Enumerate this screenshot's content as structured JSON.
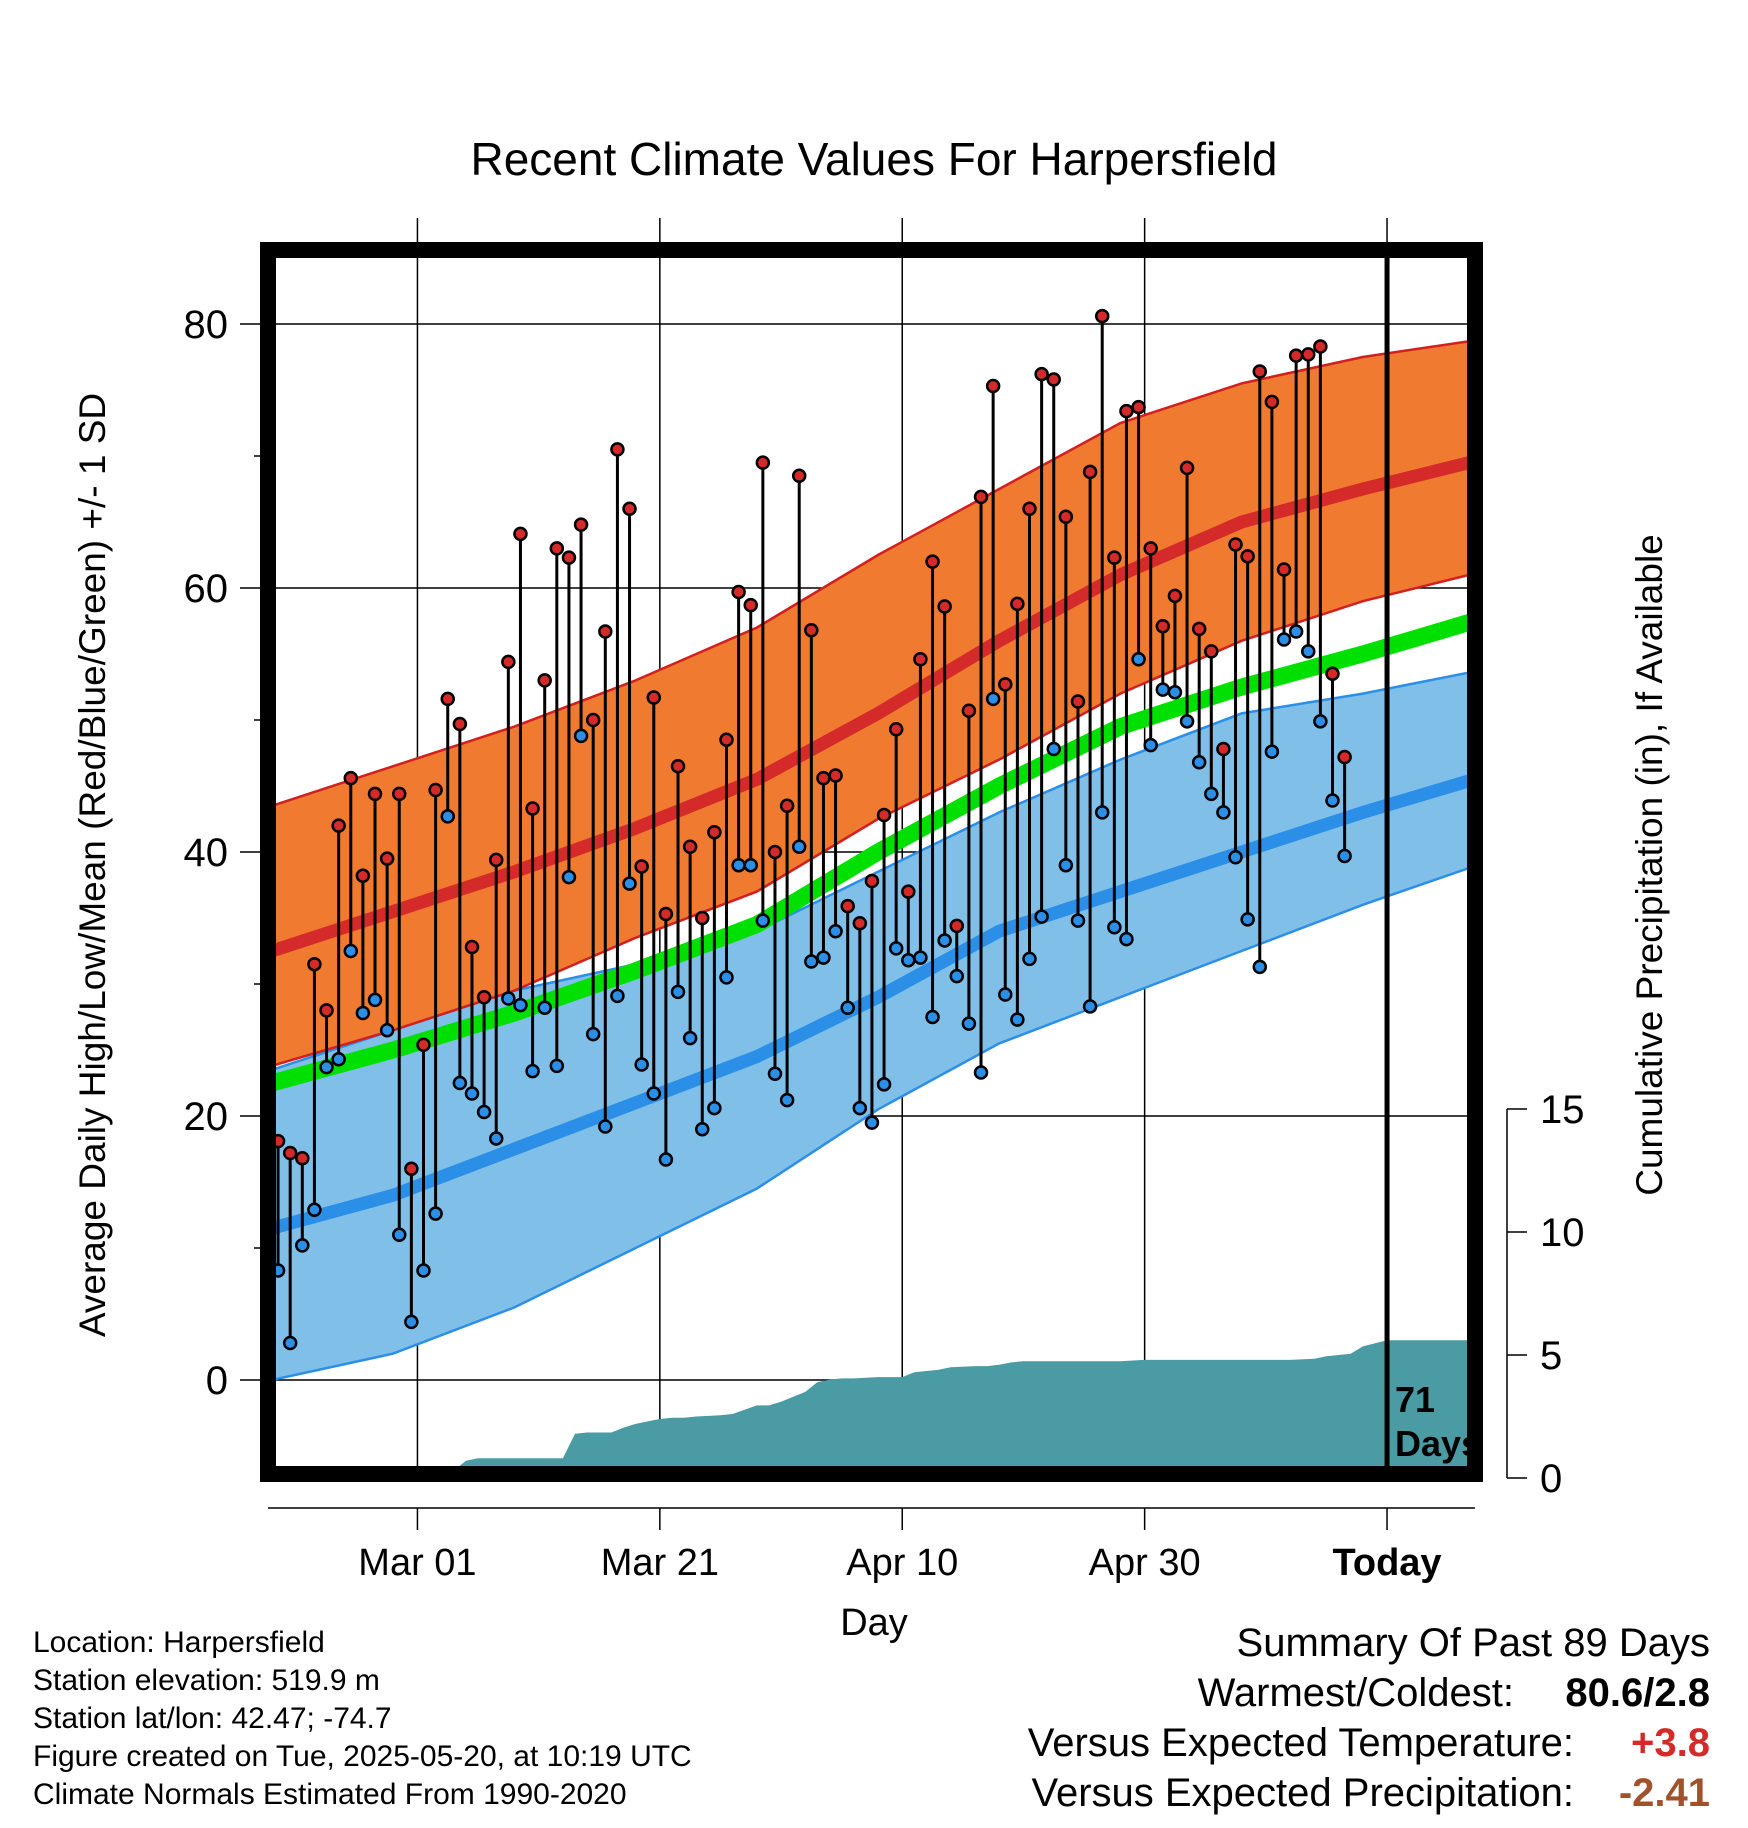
{
  "chart_data": {
    "type": "line",
    "title": "Recent Climate Values For Harpersfield",
    "xlabel": "Day",
    "ylabel": "Average Daily High/Low/Mean (Red/Blue/Green) +/- 1 SD",
    "y2label": "Cumulative Precipitation (in), If Available",
    "x_tick_labels": [
      "Mar 01",
      "Mar 21",
      "Apr 10",
      "Apr 30",
      "Today"
    ],
    "x_tick_days": [
      12,
      32,
      52,
      72,
      92
    ],
    "xlim": [
      0,
      101
    ],
    "ylim": [
      -8,
      85
    ],
    "y_ticks": [
      0,
      20,
      40,
      60,
      80
    ],
    "y2lim": [
      0,
      20
    ],
    "y2_ticks": [
      0,
      5,
      10,
      15
    ],
    "today_day": 92,
    "days_label_number": "71",
    "days_label_word": "Days",
    "grid": true,
    "normals": {
      "x": [
        0,
        10,
        20,
        30,
        40,
        50,
        60,
        70,
        80,
        90,
        101
      ],
      "high_mean": [
        32.5,
        35.5,
        38.5,
        41.8,
        45.5,
        50.5,
        56,
        61,
        65,
        67.5,
        70
      ],
      "high_sd_upper": [
        43.5,
        46.5,
        49.5,
        53,
        57,
        62.5,
        67.5,
        72.5,
        75.5,
        77.5,
        79
      ],
      "high_sd_lower": [
        23.8,
        26.5,
        29.5,
        33.5,
        37,
        42.5,
        47,
        52,
        56,
        59,
        61.5
      ],
      "avg_mean": [
        22.5,
        25,
        27.8,
        31,
        34.5,
        40,
        45,
        49.5,
        52.5,
        55,
        58
      ],
      "low_mean": [
        11.5,
        14,
        17.5,
        21,
        24.5,
        29,
        34,
        37,
        40,
        43,
        46
      ],
      "low_sd_upper": [
        23.5,
        26.5,
        29.5,
        31.5,
        34,
        38.5,
        43,
        47,
        50.5,
        52,
        54
      ],
      "low_sd_lower": [
        0,
        2,
        5.5,
        10,
        14.5,
        20.5,
        25.5,
        29,
        32.5,
        36,
        39.5
      ]
    },
    "daily_high": [
      18.1,
      17.2,
      16.8,
      31.5,
      28,
      42,
      45.6,
      38.2,
      44.4,
      39.5,
      44.4,
      16,
      25.4,
      44.7,
      51.6,
      49.7,
      32.8,
      29,
      39.4,
      54.4,
      64.1,
      43.3,
      53,
      63,
      62.3,
      64.8,
      50,
      56.7,
      70.5,
      66,
      38.9,
      51.7,
      35.3,
      46.5,
      40.4,
      35,
      41.5,
      48.5,
      59.7,
      58.7,
      69.5,
      40,
      43.5,
      68.5,
      56.8,
      45.6,
      45.8,
      35.9,
      34.6,
      37.8,
      42.8,
      49.3,
      37,
      54.6,
      62,
      58.6,
      34.4,
      50.7,
      66.9,
      75.3,
      52.7,
      58.8,
      66,
      76.2,
      75.8,
      65.4,
      51.4,
      68.8,
      80.6,
      62.3,
      73.4,
      73.7,
      63,
      57.1,
      59.4,
      69.1,
      56.9,
      55.2,
      47.8,
      63.3,
      62.4,
      76.4,
      74.1,
      61.4,
      77.6,
      77.7,
      78.3,
      53.5,
      47.2
    ],
    "daily_low": [
      8.3,
      2.8,
      10.2,
      12.9,
      23.7,
      24.3,
      32.5,
      27.8,
      28.8,
      26.5,
      11,
      4.4,
      8.3,
      12.6,
      42.7,
      22.5,
      21.7,
      20.3,
      18.3,
      28.9,
      28.4,
      23.4,
      28.2,
      23.8,
      38.1,
      48.8,
      26.2,
      19.2,
      29.1,
      37.6,
      23.9,
      21.7,
      16.7,
      29.4,
      25.9,
      19,
      20.6,
      30.5,
      39,
      39,
      34.8,
      23.2,
      21.2,
      40.4,
      31.7,
      32,
      34,
      28.2,
      20.6,
      19.5,
      22.4,
      32.7,
      31.8,
      32,
      27.5,
      33.3,
      30.6,
      27,
      23.3,
      51.6,
      29.2,
      27.3,
      31.9,
      35.1,
      47.8,
      39,
      34.8,
      28.3,
      43,
      34.3,
      33.4,
      54.6,
      48.1,
      52.3,
      52.1,
      49.9,
      46.8,
      44.4,
      43,
      39.6,
      34.9,
      31.3,
      47.6,
      56.1,
      56.7,
      55.2,
      49.9,
      43.9,
      39.7
    ],
    "cumulative_precip": {
      "x": [
        0,
        7,
        9,
        12,
        13,
        14,
        15,
        16,
        17,
        18,
        20,
        22,
        24,
        25,
        26,
        28,
        29,
        30,
        31,
        32,
        33,
        34,
        35,
        37,
        38,
        40,
        41,
        42,
        44,
        45,
        46,
        47,
        48,
        50,
        52,
        53,
        55,
        56,
        58,
        59,
        60,
        61,
        62,
        64,
        66,
        68,
        70,
        72,
        74,
        76,
        78,
        80,
        82,
        84,
        86,
        87,
        88,
        89,
        90,
        92,
        94,
        101
      ],
      "y": [
        0,
        0,
        0.1,
        0.25,
        0.25,
        0.25,
        0.3,
        0.7,
        0.8,
        0.8,
        0.8,
        0.8,
        0.8,
        1.8,
        1.85,
        1.85,
        2.05,
        2.2,
        2.3,
        2.4,
        2.45,
        2.45,
        2.5,
        2.55,
        2.6,
        2.95,
        2.95,
        3.1,
        3.5,
        3.9,
        4,
        4.05,
        4.05,
        4.1,
        4.1,
        4.3,
        4.4,
        4.5,
        4.55,
        4.55,
        4.6,
        4.7,
        4.75,
        4.75,
        4.75,
        4.75,
        4.75,
        4.8,
        4.8,
        4.8,
        4.8,
        4.8,
        4.8,
        4.8,
        4.85,
        4.95,
        5,
        5.05,
        5.35,
        5.6,
        5.6,
        5.6
      ]
    },
    "colors": {
      "high_band": "#f07a30",
      "high_band_edge": "#d02020",
      "high_mean_line": "#d42a2a",
      "low_band": "#80c0e8",
      "low_band_edge": "#2b8fe8",
      "low_mean_line": "#2b8fe8",
      "avg_line": "#00e000",
      "precip_fill": "#4a9ba4",
      "high_marker": "#d42a2a",
      "low_marker": "#2b8fe8"
    }
  },
  "info": {
    "location": "Location: Harpersfield",
    "elevation": "Station elevation: 519.9 m",
    "latlon": "Station lat/lon: 42.47; -74.7",
    "created": "Figure created on Tue, 2025-05-20, at 10:19 UTC",
    "normals": "Climate Normals Estimated From 1990-2020"
  },
  "summary": {
    "title": "Summary Of Past 89 Days",
    "warm_cold_label": "Warmest/Coldest:",
    "warm_cold_value": "80.6/2.8",
    "temp_label": "Versus Expected Temperature:",
    "temp_value": "+3.8",
    "temp_color": "#d42a2a",
    "precip_label": "Versus Expected Precipitation:",
    "precip_value": "-2.41",
    "precip_color": "#a0522d"
  }
}
